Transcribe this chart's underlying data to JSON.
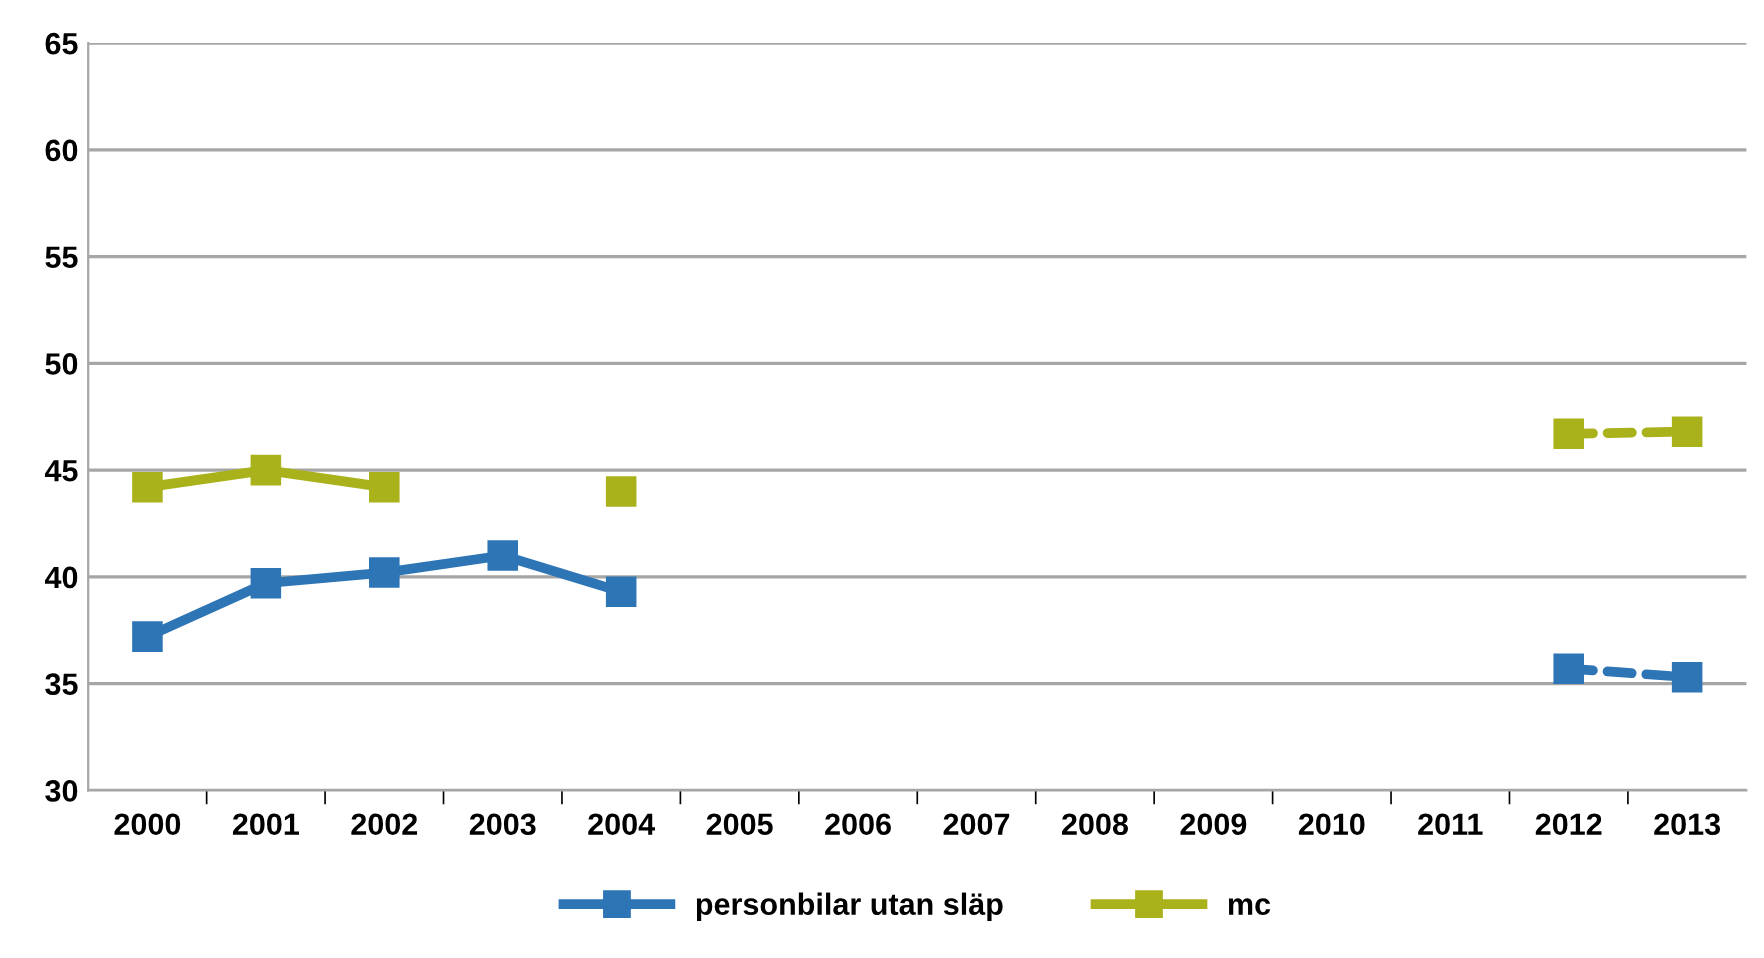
{
  "chart_data": {
    "type": "line",
    "categories": [
      "2000",
      "2001",
      "2002",
      "2003",
      "2004",
      "2005",
      "2006",
      "2007",
      "2008",
      "2009",
      "2010",
      "2011",
      "2012",
      "2013"
    ],
    "series": [
      {
        "name": "personbilar utan släp",
        "color": "#2e75b6",
        "line_style": "solid",
        "values": [
          37.2,
          39.7,
          40.2,
          41.0,
          39.3,
          null,
          null,
          null,
          null,
          null,
          null,
          null,
          null,
          null
        ]
      },
      {
        "name": "mc",
        "color": "#a9b21b",
        "line_style": "solid",
        "values": [
          44.2,
          45.0,
          44.2,
          null,
          44.0,
          null,
          null,
          null,
          null,
          null,
          null,
          null,
          null,
          null
        ]
      },
      {
        "color": "#2e75b6",
        "line_style": "dashed",
        "values": [
          null,
          null,
          null,
          null,
          null,
          null,
          null,
          null,
          null,
          null,
          null,
          null,
          35.7,
          35.3
        ]
      },
      {
        "color": "#a9b21b",
        "line_style": "dashed",
        "values": [
          null,
          null,
          null,
          null,
          null,
          null,
          null,
          null,
          null,
          null,
          null,
          null,
          46.7,
          46.8
        ]
      }
    ],
    "ylim": [
      30,
      65
    ],
    "yticks": [
      30,
      35,
      40,
      45,
      50,
      55,
      60,
      65
    ],
    "grid": "y",
    "legend": "bottom",
    "marker": "square"
  }
}
